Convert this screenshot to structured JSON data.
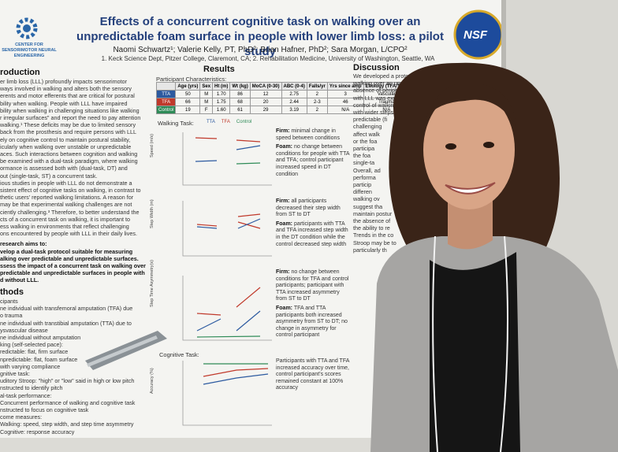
{
  "header": {
    "title": "Effects of a concurrent cognitive task on walking over an unpredictable foam surface in people with lower limb loss: a pilot study",
    "authors": "Naomi Schwartz¹; Valerie Kelly, PT, PhD²; Brian Hafner, PhD²; Sara Morgan, L/CPO²",
    "affiliations": "1. Keck Science Dept, Pitzer College, Claremont, CA; 2. Rehabilitation Medicine, University of Washington, Seattle, WA",
    "left_logo": "CENTER FOR SENSORIMOTOR NEURAL ENGINEERING",
    "right_logo": "NSF"
  },
  "introduction": {
    "heading": "roduction",
    "lines": [
      "er limb loss (LLL) profoundly impacts sensorimotor",
      "ways involved in walking and alters both the sensory",
      "erents and motor efferents that are critical for postural",
      "bility when walking. People with LLL have impaired",
      "bility when walking in challenging situations like walking",
      "r irregular surfaces\" and report the need to pay attention",
      "walking.¹ These deficits may be due to limited sensory",
      "back from the prosthesis and require persons with LLL",
      "ely on cognitive control to maintain postural stability,",
      "icularly when walking over unstable or unpredictable",
      "aces. Such interactions between cognition and walking",
      "be examined with a dual-task paradigm, where walking",
      "ormance is assessed both with (dual-task, DT) and",
      "out (single-task, ST) a concurrent task.",
      "ious studies in people with LLL do not demonstrate a",
      "sistent effect of cognitive tasks on walking, in contrast to",
      "thetic users' reported walking limitations. A reason for",
      "may be that experimental walking challenges are not",
      "ciently challenging.³ Therefore, to better understand the",
      "cts of a concurrent task on walking, it is important to",
      "ess walking in environments that reflect challenging",
      "ons encountered by people with LLL in their daily lives."
    ],
    "aims_heading": "research aims to:",
    "aims": [
      "velop a dual-task protocol suitable for measuring",
      "alking over predictable and unpredictable surfaces.",
      "ssess the impact of a concurrent task on walking over",
      "predictable and unpredictable surfaces in people with",
      "d without LLL."
    ]
  },
  "methods": {
    "heading": "thods",
    "lines": [
      "cipants",
      "ne individual with transfemoral amputation (TFA) due",
      "o trauma",
      "ne individual with transtibial amputation (TTA) due to",
      "ysvascular disease",
      "ne individual without amputation",
      "king (self-selected pace):",
      "redictable: flat, firm surface",
      "npredictable: flat, foam surface",
      "with varying compliance",
      "gnitive task:",
      "uditory Stroop: \"high\" or \"low\" said in high or low pitch",
      "nstructed to identify pitch",
      "al-task performance:",
      "Concurrent performance of walking and cognitive task",
      "nstructed to focus on cognitive task",
      "come measures:",
      "Walking: speed, step width, and step time asymmetry",
      "Cognitive: response accuracy"
    ]
  },
  "results": {
    "heading": "Results",
    "participant_label": "Participant Characteristics:",
    "table": {
      "header": [
        "",
        "Age (yrs)",
        "Sex",
        "Ht (m)",
        "Wt (kg)",
        "MoCA (0-30)",
        "ABC (0-4)",
        "Falls/yr",
        "Yrs since amp",
        "Etiology (TFA/TTA)"
      ],
      "rows": [
        [
          "TTA",
          "50",
          "M",
          "1.70",
          "86",
          "12",
          "2.75",
          "2",
          "3",
          "Vascular"
        ],
        [
          "TFA",
          "66",
          "M",
          "1.75",
          "68",
          "20",
          "2.44",
          "2-3",
          "46",
          "Trauma"
        ],
        [
          "Control",
          "19",
          "F",
          "1.60",
          "61",
          "29",
          "3.19",
          "2",
          "N/A",
          "N/A"
        ]
      ],
      "row_colors": [
        "#2c5aa0",
        "#c0392b",
        "#2e8b57"
      ]
    },
    "walking_label": "Walking Task:",
    "legend": [
      "TTA",
      "TFA",
      "Control"
    ],
    "axis_labels": [
      "Speed (m/s)",
      "Step Width (m)",
      "Step Time Asymmetry(s)",
      "Accuracy (%)"
    ],
    "cognitive_label": "Cognitive Task:",
    "notes": [
      [
        {
          "b": "Firm:",
          "t": " minimal change in speed between conditions"
        },
        {
          "b": "Foam:",
          "t": " no change between conditions for people with TTA and TFA; control participant increased speed in DT condition"
        }
      ],
      [
        {
          "b": "Firm:",
          "t": " all participants decreased their step width from ST to DT"
        },
        {
          "b": "Foam:",
          "t": " participants with TTA and TFA increased step width in the DT condition while the control decreased step width"
        }
      ],
      [
        {
          "b": "Firm:",
          "t": " no change between conditions for TFA and control participants; participant with TTA increased asymmetry from ST to DT"
        },
        {
          "b": "Foam:",
          "t": " TFA and TTA participants both increased asymmetry from ST to DT; no change in asymmetry for control participant"
        }
      ],
      [
        {
          "b": "",
          "t": "Participants with TTA and TFA increased accuracy over time, control participant's scores remained constant at 100% accuracy"
        }
      ]
    ]
  },
  "discussion": {
    "heading": "Discussion",
    "lines": [
      "We developed a protocol to asse",
      "walking over an unpredi",
      "absence of peripheral",
      "with LLL was expect",
      "control of walking",
      "with wider steps",
      "predictable (fi",
      "challenging",
      "affect walk",
      "or the foa",
      "participa",
      "the foa",
      "single-ta",
      "Overall, ad",
      "performa",
      "particip",
      "differen",
      "walking ov",
      "suggest tha",
      "maintain postur",
      "the absence of",
      "the ability to re",
      "Trends in the co",
      "Stroop may be to",
      "particularly th"
    ]
  }
}
